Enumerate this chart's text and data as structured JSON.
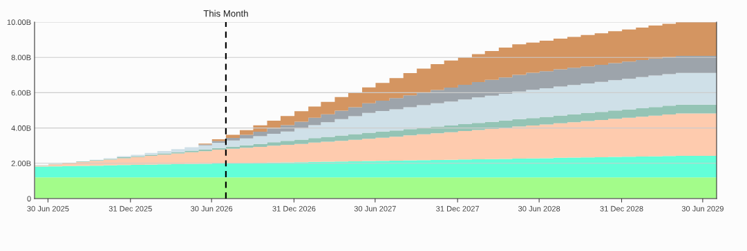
{
  "chart_data": {
    "type": "area",
    "stacked": true,
    "grid": "y",
    "x": [
      "2025-06-01",
      "2025-07-01",
      "2025-08-01",
      "2025-09-01",
      "2025-10-01",
      "2025-11-01",
      "2025-12-01",
      "2026-01-01",
      "2026-02-01",
      "2026-03-01",
      "2026-04-01",
      "2026-05-01",
      "2026-06-01",
      "2026-07-01",
      "2026-08-01",
      "2026-09-01",
      "2026-10-01",
      "2026-11-01",
      "2026-12-01",
      "2027-01-01",
      "2027-02-01",
      "2027-03-01",
      "2027-04-01",
      "2027-05-01",
      "2027-06-01",
      "2027-07-01",
      "2027-08-01",
      "2027-09-01",
      "2027-10-01",
      "2027-11-01",
      "2027-12-01",
      "2028-01-01",
      "2028-02-01",
      "2028-03-01",
      "2028-04-01",
      "2028-05-01",
      "2028-06-01",
      "2028-07-01",
      "2028-08-01",
      "2028-09-01",
      "2028-10-01",
      "2028-11-01",
      "2028-12-01",
      "2029-01-01",
      "2029-02-01",
      "2029-03-01",
      "2029-04-01",
      "2029-05-01",
      "2029-06-01",
      "2029-07-01",
      "2029-07-31"
    ],
    "series": [
      {
        "color": "#a3fc8a",
        "values": [
          1.2,
          1.2,
          1.2,
          1.2,
          1.2,
          1.2,
          1.2,
          1.2,
          1.2,
          1.2,
          1.2,
          1.2,
          1.2,
          1.2,
          1.2,
          1.2,
          1.2,
          1.2,
          1.2,
          1.2,
          1.2,
          1.2,
          1.2,
          1.2,
          1.2,
          1.2,
          1.2,
          1.2,
          1.2,
          1.2,
          1.2,
          1.2,
          1.2,
          1.2,
          1.2,
          1.2,
          1.2,
          1.2,
          1.2,
          1.2,
          1.2,
          1.2,
          1.2,
          1.2,
          1.2,
          1.2,
          1.2,
          1.2,
          1.2,
          1.2,
          1.2
        ]
      },
      {
        "color": "#63ffd8",
        "values": [
          0.62,
          0.63,
          0.65,
          0.66,
          0.67,
          0.68,
          0.7,
          0.71,
          0.72,
          0.74,
          0.75,
          0.76,
          0.77,
          0.79,
          0.8,
          0.81,
          0.82,
          0.84,
          0.85,
          0.86,
          0.88,
          0.89,
          0.9,
          0.91,
          0.93,
          0.94,
          0.95,
          0.97,
          0.98,
          0.99,
          1.0,
          1.02,
          1.03,
          1.04,
          1.05,
          1.07,
          1.08,
          1.09,
          1.11,
          1.12,
          1.13,
          1.14,
          1.16,
          1.17,
          1.18,
          1.19,
          1.21,
          1.22,
          1.22,
          1.22,
          1.22
        ]
      },
      {
        "color": "#fecbae",
        "values": [
          0.05,
          0.11,
          0.16,
          0.22,
          0.27,
          0.33,
          0.39,
          0.44,
          0.5,
          0.55,
          0.61,
          0.67,
          0.72,
          0.78,
          0.82,
          0.87,
          0.91,
          0.96,
          1.0,
          1.04,
          1.09,
          1.13,
          1.17,
          1.22,
          1.26,
          1.31,
          1.36,
          1.41,
          1.46,
          1.51,
          1.56,
          1.61,
          1.66,
          1.71,
          1.76,
          1.81,
          1.86,
          1.91,
          1.96,
          2.01,
          2.06,
          2.11,
          2.16,
          2.21,
          2.26,
          2.31,
          2.36,
          2.4,
          2.4,
          2.4,
          2.4
        ]
      },
      {
        "color": "#94c4b5",
        "values": [
          0.01,
          0.02,
          0.02,
          0.03,
          0.04,
          0.04,
          0.05,
          0.05,
          0.06,
          0.07,
          0.07,
          0.08,
          0.08,
          0.09,
          0.12,
          0.14,
          0.17,
          0.19,
          0.22,
          0.24,
          0.26,
          0.28,
          0.3,
          0.32,
          0.34,
          0.35,
          0.35,
          0.36,
          0.37,
          0.38,
          0.38,
          0.39,
          0.4,
          0.4,
          0.41,
          0.42,
          0.42,
          0.43,
          0.44,
          0.45,
          0.45,
          0.46,
          0.47,
          0.47,
          0.48,
          0.49,
          0.49,
          0.5,
          0.5,
          0.5,
          0.5
        ]
      },
      {
        "color": "#cfe0e8",
        "values": [
          0,
          0,
          0,
          0,
          0.02,
          0.04,
          0.06,
          0.08,
          0.11,
          0.14,
          0.17,
          0.2,
          0.25,
          0.3,
          0.35,
          0.39,
          0.44,
          0.48,
          0.53,
          0.63,
          0.73,
          0.83,
          0.93,
          1.02,
          1.12,
          1.16,
          1.2,
          1.24,
          1.28,
          1.32,
          1.36,
          1.4,
          1.44,
          1.48,
          1.52,
          1.56,
          1.6,
          1.62,
          1.64,
          1.66,
          1.68,
          1.7,
          1.72,
          1.74,
          1.76,
          1.78,
          1.79,
          1.8,
          1.8,
          1.8,
          1.8
        ]
      },
      {
        "color": "#9da4ab",
        "values": [
          0,
          0,
          0,
          0,
          0,
          0,
          0,
          0,
          0,
          0,
          0,
          0,
          0.05,
          0.1,
          0.15,
          0.2,
          0.25,
          0.3,
          0.36,
          0.39,
          0.42,
          0.45,
          0.48,
          0.51,
          0.55,
          0.59,
          0.63,
          0.67,
          0.71,
          0.75,
          0.79,
          0.83,
          0.87,
          0.9,
          0.93,
          0.95,
          0.97,
          0.97,
          0.97,
          0.97,
          0.97,
          0.97,
          0.97,
          0.97,
          0.97,
          0.97,
          0.97,
          0.97,
          0.97,
          0.97,
          0.97
        ]
      },
      {
        "color": "#d49561",
        "values": [
          0,
          0,
          0,
          0,
          0,
          0,
          0,
          0,
          0,
          0,
          0,
          0,
          0.05,
          0.1,
          0.17,
          0.27,
          0.36,
          0.44,
          0.52,
          0.59,
          0.63,
          0.7,
          0.77,
          0.84,
          0.9,
          1.0,
          1.14,
          1.26,
          1.36,
          1.47,
          1.53,
          1.55,
          1.58,
          1.63,
          1.68,
          1.73,
          1.71,
          1.73,
          1.74,
          1.75,
          1.78,
          1.79,
          1.8,
          1.82,
          1.84,
          1.86,
          1.88,
          1.91,
          1.91,
          1.91,
          1.91
        ]
      }
    ],
    "xlim": [
      "2025-05-31",
      "2029-07-31"
    ],
    "xticks": [
      {
        "value": "2025-06-30",
        "label": "30 Jun 2025"
      },
      {
        "value": "2025-12-31",
        "label": "31 Dec 2025"
      },
      {
        "value": "2026-06-30",
        "label": "30 Jun 2026"
      },
      {
        "value": "2026-12-31",
        "label": "31 Dec 2026"
      },
      {
        "value": "2027-06-30",
        "label": "30 Jun 2027"
      },
      {
        "value": "2027-12-31",
        "label": "31 Dec 2027"
      },
      {
        "value": "2028-06-30",
        "label": "30 Jun 2028"
      },
      {
        "value": "2028-12-31",
        "label": "31 Dec 2028"
      },
      {
        "value": "2029-06-30",
        "label": "30 Jun 2029"
      }
    ],
    "ylim": [
      0,
      10
    ],
    "yticks": [
      0,
      {
        "value": 2,
        "label": "2.00B"
      },
      {
        "value": 4,
        "label": "4.00B"
      },
      {
        "value": 6,
        "label": "6.00B"
      },
      {
        "value": 8,
        "label": "8.00B"
      },
      {
        "value": 10,
        "label": "10.00B"
      }
    ],
    "ref_lines": [
      {
        "axis": "x",
        "value": "2026-08-01",
        "label": "This Month",
        "color": "#000000",
        "line_style": "dashed"
      }
    ]
  }
}
